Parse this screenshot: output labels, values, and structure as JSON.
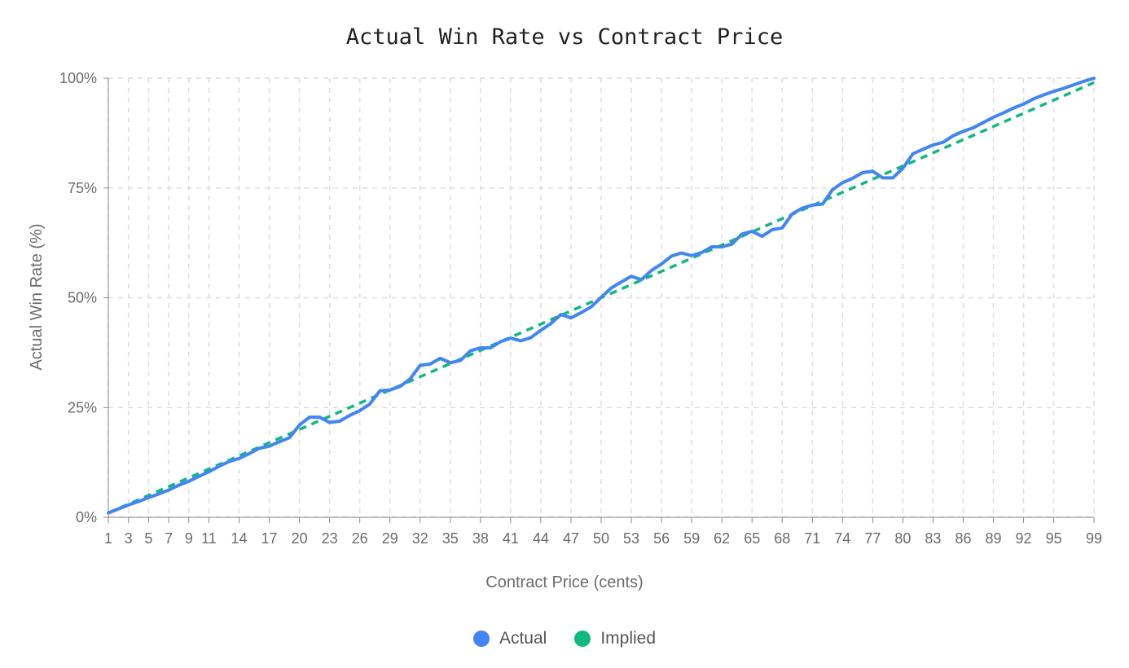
{
  "chart_data": {
    "type": "line",
    "title": "Actual Win Rate vs Contract Price",
    "xlabel": "Contract Price (cents)",
    "ylabel": "Actual Win Rate (%)",
    "xlim": [
      1,
      99
    ],
    "ylim": [
      0,
      100
    ],
    "x_tick_labels": [
      "1",
      "3",
      "5",
      "7",
      "9",
      "11",
      "14",
      "17",
      "20",
      "23",
      "26",
      "29",
      "32",
      "35",
      "38",
      "41",
      "44",
      "47",
      "50",
      "53",
      "56",
      "59",
      "62",
      "65",
      "68",
      "71",
      "74",
      "77",
      "80",
      "83",
      "86",
      "89",
      "92",
      "95",
      "99"
    ],
    "y_ticks": [
      0,
      25,
      50,
      75,
      100
    ],
    "y_tick_labels": [
      "0%",
      "25%",
      "50%",
      "75%",
      "100%"
    ],
    "grid": true,
    "legend_position": "bottom",
    "series": [
      {
        "name": "Actual",
        "color": "#4285f4",
        "style": "solid",
        "x": [
          1,
          2,
          3,
          4,
          5,
          6,
          7,
          8,
          9,
          10,
          11,
          12,
          13,
          14,
          15,
          16,
          17,
          18,
          19,
          20,
          21,
          22,
          23,
          24,
          25,
          26,
          27,
          28,
          29,
          30,
          31,
          32,
          33,
          34,
          35,
          36,
          37,
          38,
          39,
          40,
          41,
          42,
          43,
          44,
          45,
          46,
          47,
          48,
          49,
          50,
          51,
          52,
          53,
          54,
          55,
          56,
          57,
          58,
          59,
          60,
          61,
          62,
          63,
          64,
          65,
          66,
          67,
          68,
          69,
          70,
          71,
          72,
          73,
          74,
          75,
          76,
          77,
          78,
          79,
          80,
          81,
          82,
          83,
          84,
          85,
          86,
          87,
          88,
          89,
          90,
          91,
          92,
          93,
          94,
          95,
          96,
          97,
          98,
          99
        ],
        "values": [
          1,
          1.9,
          2.8,
          3.6,
          4.5,
          5.3,
          6.2,
          7.3,
          8.2,
          9.3,
          10.4,
          11.6,
          12.7,
          13.4,
          14.5,
          15.7,
          16.2,
          17.2,
          18.1,
          21,
          22.8,
          22.8,
          21.6,
          21.9,
          23.2,
          24.3,
          25.8,
          28.8,
          29,
          29.8,
          31.5,
          34.6,
          34.9,
          36.2,
          35.2,
          35.7,
          37.9,
          38.6,
          38.6,
          40,
          40.8,
          40.2,
          40.9,
          42.6,
          44.1,
          46.2,
          45.4,
          46.6,
          47.9,
          50.1,
          52.2,
          53.6,
          54.9,
          54.1,
          56.2,
          57.7,
          59.5,
          60.2,
          59.6,
          60.3,
          61.6,
          61.6,
          62.2,
          64.5,
          65.1,
          64,
          65.5,
          65.9,
          69.1,
          70.4,
          71.1,
          71.3,
          74.6,
          76.2,
          77.2,
          78.5,
          78.8,
          77.3,
          77.3,
          79.5,
          82.8,
          83.8,
          84.8,
          85.4,
          86.9,
          87.9,
          88.7,
          89.9,
          91.1,
          92.1,
          93.2,
          94.1,
          95.3,
          96.2,
          97,
          97.7,
          98.5,
          99.3,
          100
        ]
      },
      {
        "name": "Implied",
        "color": "#10b981",
        "style": "dashed",
        "x": [
          1,
          99
        ],
        "values": [
          1,
          99
        ]
      }
    ]
  }
}
